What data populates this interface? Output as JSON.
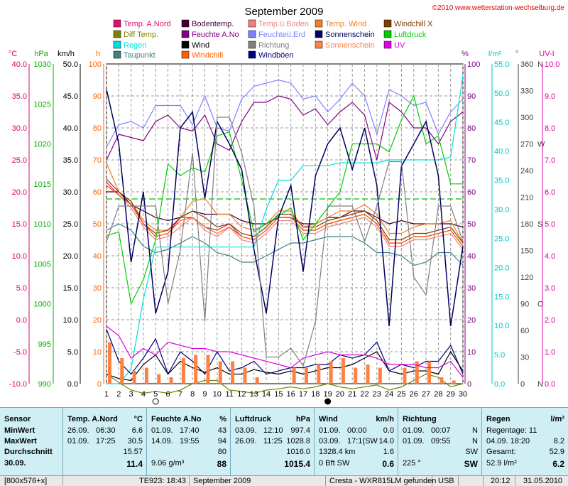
{
  "title": "September 2009",
  "copyright": "©2010 www.wetterstation-wechselburg.de",
  "legend": [
    {
      "label": "Temp. A.Nord",
      "color": "#e01070"
    },
    {
      "label": "Bodentemp.",
      "color": "#400030"
    },
    {
      "label": "Temp.ü.Boden",
      "color": "#f08080"
    },
    {
      "label": "Temp. Wind",
      "color": "#f08020"
    },
    {
      "label": "Windchill X",
      "color": "#804000"
    },
    {
      "label": "Diff Temp.",
      "color": "#808000"
    },
    {
      "label": "Feuchte A.No",
      "color": "#800080"
    },
    {
      "label": "Feuchteü.Erd",
      "color": "#8080ff"
    },
    {
      "label": "Sonnenschein",
      "color": "#000060"
    },
    {
      "label": "Luftdruck",
      "color": "#00d000"
    },
    {
      "label": "Regen",
      "color": "#00e0e0"
    },
    {
      "label": "Wind",
      "color": "#000000"
    },
    {
      "label": "Richtung",
      "color": "#808080"
    },
    {
      "label": "Sonnenschein",
      "color": "#ff8040"
    },
    {
      "label": "UV",
      "color": "#e000e0"
    },
    {
      "label": "Taupunkt",
      "color": "#408080"
    },
    {
      "label": "Windchill",
      "color": "#ff6000"
    },
    {
      "label": "Windböen",
      "color": "#000080"
    }
  ],
  "axes": {
    "temp": {
      "unit": "°C",
      "color": "#e0006a",
      "ticks": [
        "40.0",
        "35.0",
        "30.0",
        "25.0",
        "20.0",
        "15.0",
        "10.0",
        "5.0",
        "0.0",
        "-5.0",
        "-10.0"
      ]
    },
    "hpa": {
      "unit": "hPa",
      "color": "#00b000",
      "ticks": [
        "1030",
        "1025",
        "1020",
        "1015",
        "1010",
        "1005",
        "1000",
        "995",
        "990"
      ]
    },
    "kmh": {
      "unit": "km/h",
      "color": "#000000",
      "ticks": [
        "50.0",
        "45.0",
        "40.0",
        "35.0",
        "30.0",
        "25.0",
        "20.0",
        "15.0",
        "10.0",
        "5.0",
        "0.0"
      ]
    },
    "h": {
      "unit": "h",
      "color": "#ff6000",
      "ticks": [
        "100",
        "90",
        "80",
        "70",
        "60",
        "50",
        "40",
        "30",
        "20",
        "10",
        "0"
      ]
    },
    "pct": {
      "unit": "%",
      "color": "#800080",
      "ticks": [
        "100",
        "90",
        "80",
        "70",
        "60",
        "50",
        "40",
        "30",
        "20",
        "10",
        "0"
      ]
    },
    "lm2": {
      "unit": "l/m²",
      "color": "#00c8c8",
      "ticks": [
        "55.0",
        "50.0",
        "45.0",
        "40.0",
        "35.0",
        "30.0",
        "25.0",
        "20.0",
        "15.0",
        "10.0",
        "5.0",
        "0.0"
      ]
    },
    "deg": {
      "unit": "°",
      "color": "#404040",
      "ticks": [
        "360",
        "330",
        "300",
        "270",
        "240",
        "210",
        "180",
        "150",
        "120",
        "90",
        "60",
        "30",
        "0"
      ],
      "dirs": {
        "360": "N",
        "270": "W",
        "180": "S",
        "90": "O",
        "0": "N"
      }
    },
    "uv": {
      "unit": "UV-I",
      "color": "#e000a0",
      "ticks": [
        "10.0",
        "9.0",
        "8.0",
        "7.0",
        "6.0",
        "5.0",
        "4.0",
        "3.0",
        "2.0",
        "1.0",
        "0.0"
      ]
    }
  },
  "chart_data": {
    "type": "line",
    "title": "September 2009",
    "x": [
      1,
      2,
      3,
      4,
      5,
      6,
      7,
      8,
      9,
      10,
      11,
      12,
      13,
      14,
      15,
      16,
      17,
      18,
      19,
      20,
      21,
      22,
      23,
      24,
      25,
      26,
      27,
      28,
      29,
      30
    ],
    "xlabels": [
      "1",
      "2",
      "3",
      "4",
      "5",
      "6",
      "7",
      "8",
      "9",
      "10",
      "11",
      "12",
      "13",
      "14",
      "15",
      "16",
      "17",
      "18",
      "19",
      "20",
      "21",
      "22",
      "23",
      "24",
      "25",
      "26",
      "27",
      "28",
      "29",
      "30"
    ],
    "moon_marks": [
      {
        "day": 5,
        "symbol": "○"
      },
      {
        "day": 19,
        "symbol": "●"
      }
    ],
    "axis_ranges": {
      "temp": [
        -10,
        40
      ],
      "pressure": [
        990,
        1030
      ],
      "wind": [
        0,
        50
      ],
      "sunshine_h": [
        0,
        100
      ],
      "humidity": [
        0,
        100
      ],
      "rain": [
        0,
        55
      ],
      "direction": [
        0,
        360
      ],
      "uv": [
        0,
        10
      ]
    },
    "grid": true,
    "series": [
      {
        "name": "Temp. A.Nord",
        "axis": "temp",
        "color": "#e01070",
        "values": [
          21.5,
          19.5,
          18,
          15,
          13,
          13.5,
          16,
          16,
          14.5,
          14,
          15,
          13,
          12.5,
          14,
          16,
          16,
          14,
          14,
          15,
          15.5,
          16,
          16.5,
          15,
          12,
          12,
          13,
          13,
          13.5,
          14,
          11.5
        ]
      },
      {
        "name": "Bodentemp.",
        "axis": "temp",
        "color": "#400030",
        "values": [
          20,
          20,
          18,
          17,
          16,
          15.5,
          16,
          17,
          16.5,
          16.5,
          16.5,
          15.5,
          15,
          15,
          16,
          16,
          15,
          15,
          16,
          16,
          17,
          17,
          16,
          15,
          15.5,
          15,
          15,
          15,
          15,
          14.5
        ]
      },
      {
        "name": "Temp.ü.Boden",
        "axis": "temp",
        "color": "#f08080",
        "values": [
          21,
          19.5,
          17.5,
          14.5,
          12.5,
          13,
          14.5,
          16,
          14,
          13,
          14.5,
          12.5,
          12,
          13.5,
          15.5,
          15.5,
          13.5,
          13.5,
          14.5,
          15,
          15.5,
          16,
          14.5,
          11.5,
          11.5,
          12.5,
          12.5,
          13,
          13.5,
          11
        ]
      },
      {
        "name": "Temp. Wind",
        "axis": "temp",
        "color": "#f08020",
        "values": [
          24.5,
          20,
          18.5,
          15.5,
          14,
          14,
          16,
          18.5,
          19,
          16.5,
          16.5,
          14.5,
          14,
          15,
          17,
          17,
          14.5,
          15,
          16,
          17,
          17,
          18,
          16.5,
          13.5,
          13.5,
          14.5,
          15,
          15,
          15.5,
          12
        ]
      },
      {
        "name": "Windchill X",
        "axis": "temp",
        "color": "#804000",
        "values": [
          22,
          20,
          18.5,
          15,
          13.5,
          14,
          16,
          17,
          16,
          14.5,
          15,
          13.5,
          13,
          14.5,
          16.5,
          16.5,
          14.5,
          14.5,
          15.5,
          16,
          16.5,
          17,
          15.5,
          12.5,
          12.5,
          13.5,
          13.5,
          14,
          14.5,
          12
        ]
      },
      {
        "name": "Diff Temp.",
        "axis": "temp",
        "color": "#808000",
        "values": [
          -8.5,
          -9.8,
          -11,
          -11.5,
          -11.2,
          -11.5,
          -11,
          -10,
          -9.5,
          -9.5,
          -11,
          -11.2,
          -11.5,
          -11,
          -10.8,
          -10.5,
          -10.8,
          -10.5,
          -10,
          -10.5,
          -10.8,
          -10.5,
          -10.2,
          -11,
          -10.5,
          -9.5,
          -8.5,
          -9,
          -10.5,
          -10
        ]
      },
      {
        "name": "Taupunkt",
        "axis": "temp",
        "color": "#408080",
        "values": [
          14,
          15,
          14,
          11.5,
          10.5,
          11,
          12,
          13,
          12,
          10.5,
          10,
          9,
          9,
          10,
          11,
          12,
          12,
          12.5,
          13,
          13,
          13,
          12,
          10.5,
          10.5,
          10,
          8.5,
          9,
          10.5,
          10.5,
          8.5
        ]
      },
      {
        "name": "Windchill",
        "axis": "temp",
        "color": "#ff6000",
        "values": [
          21,
          19.5,
          18,
          15,
          13,
          13.5,
          15.5,
          16,
          14.5,
          13.5,
          14.5,
          13,
          12.5,
          14,
          16,
          16,
          14,
          14,
          15,
          15.5,
          16,
          16.5,
          15,
          12,
          12,
          13,
          13,
          13.5,
          14,
          11.5
        ]
      },
      {
        "name": "Feuchte A.No",
        "axis": "pct",
        "color": "#800080",
        "values": [
          70,
          78,
          77,
          76,
          82,
          84,
          80,
          79,
          84,
          75,
          73,
          82,
          88,
          88,
          90,
          89,
          84,
          86,
          81,
          85,
          88,
          84,
          70,
          88,
          85,
          80,
          80,
          75,
          82,
          85
        ]
      },
      {
        "name": "Feuchteü.Erd",
        "axis": "pct",
        "color": "#8080ff",
        "values": [
          74,
          81,
          82,
          80,
          87,
          87,
          87,
          81,
          90,
          80,
          79,
          89,
          93,
          94,
          95,
          94,
          89,
          90,
          85,
          89,
          94,
          90,
          78,
          92,
          90,
          87,
          88,
          78,
          85,
          89
        ]
      },
      {
        "name": "Luftdruck",
        "axis": "hpa",
        "color": "#00d000",
        "values": [
          1008.5,
          1009,
          1000,
          1003,
          1008,
          1017.5,
          1016,
          1017,
          1016.5,
          1021,
          1021.5,
          1015.5,
          1009,
          1010,
          1011,
          1012,
          1008,
          1010,
          1012,
          1014,
          1020,
          1020,
          1020,
          1019,
          1023,
          1026,
          1020,
          1021,
          1015,
          1015
        ]
      },
      {
        "name": "Regen",
        "axis": "rain",
        "color": "#00e0e0",
        "values": [
          0,
          0,
          2.5,
          14.5,
          23.5,
          23.5,
          23.5,
          23.5,
          23.5,
          23.5,
          23.5,
          23.5,
          23.5,
          30,
          35,
          35,
          37.5,
          37.5,
          37.5,
          38,
          38,
          38,
          38,
          38.5,
          38.5,
          38.5,
          38.5,
          38.5,
          39,
          53
        ]
      },
      {
        "name": "Wind",
        "axis": "kmh",
        "color": "#000000",
        "values": [
          1.5,
          0.8,
          0.5,
          3,
          4.5,
          1.5,
          3.5,
          2.5,
          1.8,
          2.5,
          1.5,
          1.5,
          2.2,
          1.8,
          1.5,
          2,
          1.5,
          2,
          2.5,
          2.5,
          3,
          4,
          5,
          2,
          1.5,
          2,
          2,
          1.5,
          5,
          2
        ]
      },
      {
        "name": "Windböen",
        "axis": "kmh",
        "color": "#000080",
        "values": [
          8.5,
          3.5,
          1.5,
          4,
          7,
          1.5,
          5,
          3.5,
          1.5,
          5,
          2,
          2.5,
          3.5,
          1.5,
          2,
          2.5,
          2.5,
          3,
          3,
          4.5,
          4,
          4.5,
          6.5,
          2,
          3,
          2.5,
          3.5,
          3.5,
          6,
          1.5
        ]
      },
      {
        "name": "Sonnenschein",
        "axis": "h",
        "color": "#000060",
        "values": [
          92,
          75,
          38,
          60,
          22,
          35,
          80,
          85,
          58,
          82,
          75,
          67,
          42,
          22,
          52,
          62,
          35,
          65,
          75,
          80,
          67,
          80,
          62,
          18,
          68,
          75,
          82,
          65,
          18,
          43
        ]
      },
      {
        "name": "Sonnenschein (bar)",
        "axis": "h",
        "color": "#ff8040",
        "values": [
          13,
          8,
          4,
          5,
          3,
          2,
          8,
          9,
          9,
          7,
          7,
          5,
          2,
          0,
          0,
          5,
          5,
          6,
          7,
          8,
          5,
          6,
          5,
          0,
          5,
          7,
          7,
          2,
          1,
          0
        ]
      },
      {
        "name": "UV",
        "axis": "uv",
        "color": "#e000e0",
        "values": [
          1.8,
          1.5,
          0.8,
          1.1,
          0.9,
          1.3,
          1.2,
          1.1,
          1.1,
          1.0,
          1.0,
          0.9,
          0.8,
          0.7,
          0.6,
          0.5,
          0.8,
          0.9,
          1.0,
          0.9,
          0.9,
          0.9,
          0.8,
          0.6,
          0.6,
          0.6,
          0.5,
          0.5,
          0.7,
          0.2
        ]
      },
      {
        "name": "Richtung",
        "axis": "deg",
        "color": "#808080",
        "values": [
          160,
          200,
          200,
          200,
          200,
          90,
          150,
          260,
          70,
          300,
          300,
          260,
          200,
          30,
          30,
          40,
          20,
          70,
          200,
          200,
          200,
          160,
          200,
          250,
          250,
          120,
          100,
          200,
          200,
          160
        ]
      }
    ]
  },
  "table": {
    "col1": {
      "header": "Sensor",
      "rows": [
        "MinWert",
        "MaxWert",
        "Durchschnitt",
        "30.09."
      ]
    },
    "col2": {
      "header": "Temp. A.Nord",
      "unit": "°C",
      "rows": [
        [
          "26.09.",
          "06:30",
          "6.6"
        ],
        [
          "01.09.",
          "17:25",
          "30.5"
        ],
        [
          "",
          "",
          "15.57"
        ],
        [
          "",
          "",
          "11.4"
        ]
      ]
    },
    "col3": {
      "header": "Feuchte A.No",
      "unit": "%",
      "rows": [
        [
          "01.09.",
          "17:40",
          "43"
        ],
        [
          "14.09.",
          "19:55",
          "94"
        ],
        [
          "",
          "",
          "80"
        ],
        [
          "9.06 g/m³",
          "",
          "88"
        ]
      ]
    },
    "col4": {
      "header": "Luftdruck",
      "unit": "hPa",
      "rows": [
        [
          "03.09.",
          "12:10",
          "997.4"
        ],
        [
          "26.09.",
          "11:25",
          "1028.8"
        ],
        [
          "",
          "",
          "1016.0"
        ],
        [
          "",
          "",
          "1015.4"
        ]
      ]
    },
    "col5": {
      "header": "Wind",
      "unit": "km/h",
      "rows": [
        [
          "01.09.",
          "00:00",
          "0.0"
        ],
        [
          "03.09.",
          "17:1(SW",
          "14.0"
        ],
        [
          "1328.4 km",
          "",
          "1.6"
        ],
        [
          "0 Bft SW",
          "",
          "0.6"
        ]
      ]
    },
    "col6": {
      "header": "Richtung",
      "rows": [
        [
          "01.09.",
          "00:07",
          "N"
        ],
        [
          "01.09.",
          "09:55",
          "N"
        ],
        [
          "",
          "",
          "SW"
        ],
        [
          "225 °",
          "",
          "SW"
        ]
      ]
    },
    "col7": {
      "header": "Regen",
      "unit": "l/m²",
      "rows": [
        [
          "Regentage: 11",
          ""
        ],
        [
          "04.09.   18:20",
          "8.2"
        ],
        [
          "Gesamt:",
          "52.9"
        ],
        [
          "52.9 l/m²",
          "6.2"
        ]
      ]
    }
  },
  "status": {
    "res": "[800x576+x]",
    "te": "TE923: 18:43",
    "month": "September 2009",
    "station": "Cresta - WXR815LM gefunden",
    "usb": "USB",
    "time": "20:12",
    "date": "31.05.2010"
  }
}
